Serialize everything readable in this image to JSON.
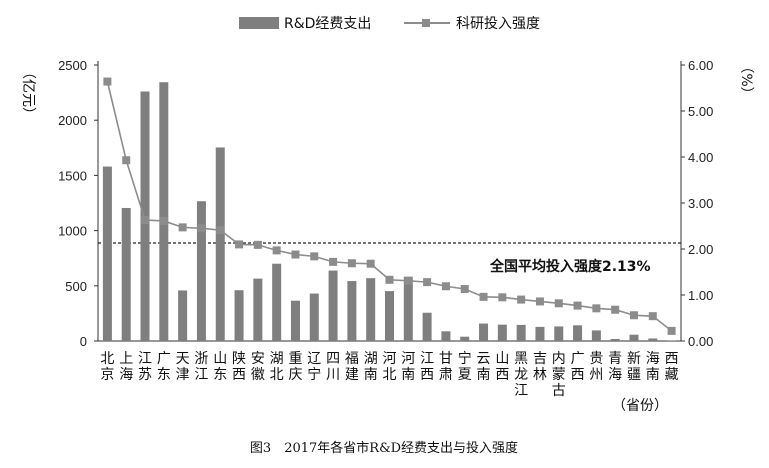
{
  "chart_data": {
    "type": "bar",
    "caption": "图3　2017年各省市R&D经费支出与投入强度",
    "categories": [
      "北京",
      "上海",
      "江苏",
      "广东",
      "天津",
      "浙江",
      "山东",
      "陕西",
      "安徽",
      "湖北",
      "重庆",
      "辽宁",
      "四川",
      "福建",
      "湖南",
      "河北",
      "河南",
      "江西",
      "甘肃",
      "宁夏",
      "云南",
      "山西",
      "黑龙江",
      "吉林",
      "内蒙古",
      "广西",
      "贵州",
      "青海",
      "新疆",
      "海南",
      "西藏"
    ],
    "xlabel": "（省份）",
    "ylabel_left": "（亿元）",
    "ylabel_right": "（%）",
    "ylim_left": [
      0,
      2500
    ],
    "ylim_right": [
      0,
      6
    ],
    "yticks_left": [
      "0",
      "500",
      "1000",
      "1500",
      "2000",
      "2500"
    ],
    "yticks_right": [
      "0.00",
      "1.00",
      "2.00",
      "3.00",
      "4.00",
      "5.00",
      "6.00"
    ],
    "series": [
      {
        "name": "R&D经费支出",
        "kind": "bar",
        "axis": "left",
        "color": "#7f7f7f",
        "values": [
          1580,
          1205,
          2260,
          2344,
          458,
          1266,
          1753,
          460,
          565,
          700,
          365,
          430,
          638,
          543,
          569,
          452,
          582,
          256,
          88,
          39,
          158,
          148,
          146,
          128,
          132,
          142,
          96,
          18,
          57,
          23,
          3
        ]
      },
      {
        "name": "科研投入强度",
        "kind": "line",
        "axis": "right",
        "color": "#8c8c8c",
        "values": [
          5.64,
          3.93,
          2.63,
          2.61,
          2.47,
          2.45,
          2.41,
          2.1,
          2.09,
          1.97,
          1.88,
          1.84,
          1.72,
          1.69,
          1.68,
          1.33,
          1.31,
          1.28,
          1.19,
          1.13,
          0.96,
          0.95,
          0.9,
          0.86,
          0.82,
          0.77,
          0.71,
          0.68,
          0.56,
          0.54,
          0.22
        ]
      }
    ],
    "reference": {
      "label": "全国平均投入强度2.13%",
      "value": 2.13,
      "axis": "right",
      "style": "dashed"
    },
    "legend": "top"
  }
}
